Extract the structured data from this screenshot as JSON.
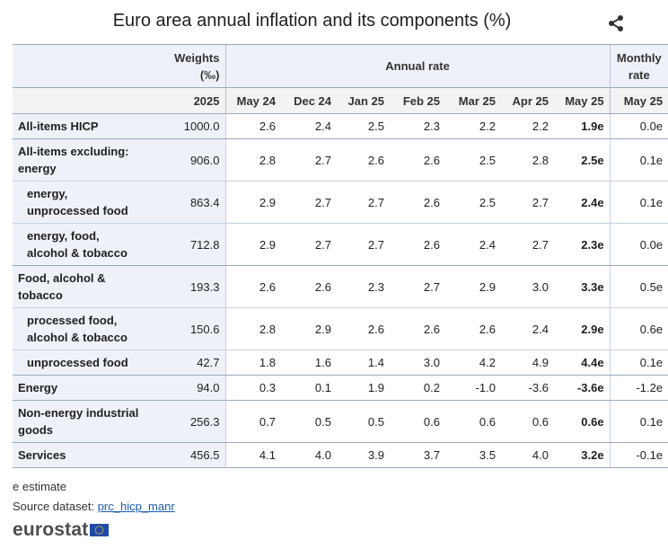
{
  "title": "Euro area annual inflation and its components (%)",
  "header": {
    "weights_label": "Weights (‰)",
    "weights_line1": "Weights",
    "weights_line2": "(‰)",
    "annual_label": "Annual rate",
    "monthly_line1": "Monthly",
    "monthly_line2": "rate",
    "weights_year": "2025",
    "periods": [
      "May 24",
      "Dec 24",
      "Jan 25",
      "Feb 25",
      "Mar 25",
      "Apr 25",
      "May 25"
    ],
    "monthly_period": "May 25"
  },
  "rows": [
    {
      "label": "All-items HICP",
      "weight": "1000.0",
      "values": [
        "2.6",
        "2.4",
        "2.5",
        "2.3",
        "2.2",
        "2.2",
        "1.9e"
      ],
      "monthly": "0.0e"
    },
    {
      "label": "All-items excluding: energy",
      "weight": "906.0",
      "values": [
        "2.8",
        "2.7",
        "2.6",
        "2.6",
        "2.5",
        "2.8",
        "2.5e"
      ],
      "monthly": "0.1e"
    },
    {
      "label": "energy, unprocessed food",
      "weight": "863.4",
      "values": [
        "2.9",
        "2.7",
        "2.7",
        "2.6",
        "2.5",
        "2.7",
        "2.4e"
      ],
      "monthly": "0.1e"
    },
    {
      "label": "energy, food, alcohol & tobacco",
      "weight": "712.8",
      "values": [
        "2.9",
        "2.7",
        "2.7",
        "2.6",
        "2.4",
        "2.7",
        "2.3e"
      ],
      "monthly": "0.0e"
    },
    {
      "label": "Food, alcohol & tobacco",
      "weight": "193.3",
      "values": [
        "2.6",
        "2.6",
        "2.3",
        "2.7",
        "2.9",
        "3.0",
        "3.3e"
      ],
      "monthly": "0.5e"
    },
    {
      "label": "processed food, alcohol & tobacco",
      "weight": "150.6",
      "values": [
        "2.8",
        "2.9",
        "2.6",
        "2.6",
        "2.6",
        "2.4",
        "2.9e"
      ],
      "monthly": "0.6e"
    },
    {
      "label": "unprocessed food",
      "weight": "42.7",
      "values": [
        "1.8",
        "1.6",
        "1.4",
        "3.0",
        "4.2",
        "4.9",
        "4.4e"
      ],
      "monthly": "0.1e"
    },
    {
      "label": "Energy",
      "weight": "94.0",
      "values": [
        "0.3",
        "0.1",
        "1.9",
        "0.2",
        "-1.0",
        "-3.6",
        "-3.6e"
      ],
      "monthly": "-1.2e"
    },
    {
      "label": "Non-energy industrial goods",
      "weight": "256.3",
      "values": [
        "0.7",
        "0.5",
        "0.5",
        "0.6",
        "0.6",
        "0.6",
        "0.6e"
      ],
      "monthly": "0.1e"
    },
    {
      "label": "Services",
      "weight": "456.5",
      "values": [
        "4.1",
        "4.0",
        "3.9",
        "3.7",
        "3.5",
        "4.0",
        "3.2e"
      ],
      "monthly": "-0.1e"
    }
  ],
  "footnote": "e estimate",
  "source": {
    "prefix": "Source dataset:",
    "link_text": "prc_hicp_manr"
  },
  "logo_text": "eurostat",
  "icons": {
    "share": "share-icon",
    "flag": "eu-flag-icon"
  },
  "colors": {
    "header_bg": "#eef2f8",
    "label_bg": "#eef2f8",
    "link": "#1a5cb8",
    "eu_blue": "#1f4aa8",
    "eu_stars": "#ffd200"
  }
}
